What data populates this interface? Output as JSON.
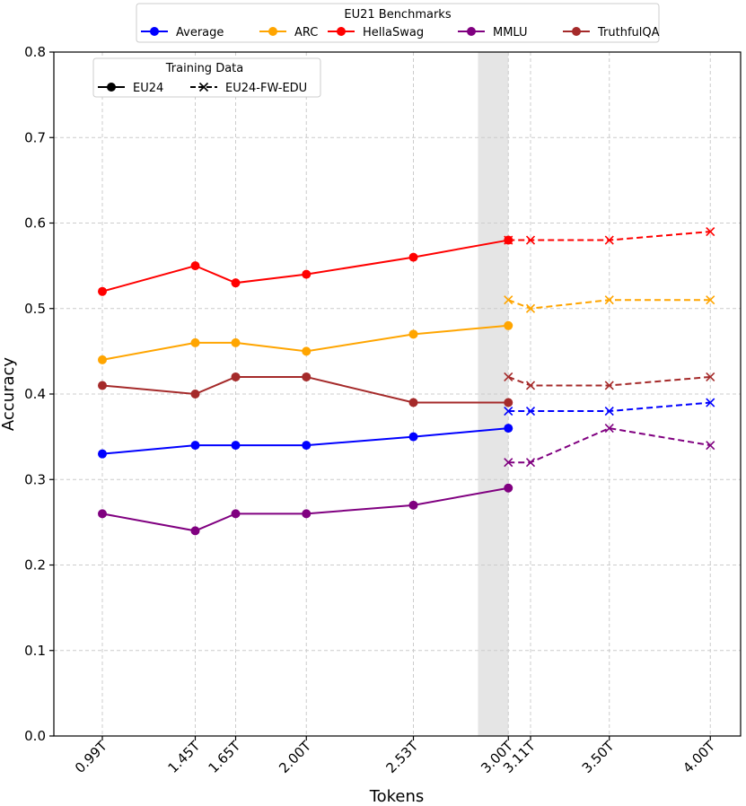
{
  "chart_data": {
    "type": "line",
    "xlabel": "Tokens",
    "ylabel": "Accuracy",
    "ylim": [
      0.0,
      0.8
    ],
    "yticks": [
      "0.0",
      "0.1",
      "0.2",
      "0.3",
      "0.4",
      "0.5",
      "0.6",
      "0.7",
      "0.8"
    ],
    "ytick_values": [
      0.0,
      0.1,
      0.2,
      0.3,
      0.4,
      0.5,
      0.6,
      0.7,
      0.8
    ],
    "xlim": [
      0.75,
      4.15
    ],
    "x_values": [
      0.99,
      1.45,
      1.65,
      2.0,
      2.53,
      3.0,
      3.11,
      3.5,
      4.0
    ],
    "x_tick_labels": [
      "0.99T",
      "1.45T",
      "1.65T",
      "2.00T",
      "2.53T",
      "3.00T",
      "3.11T",
      "3.50T",
      "4.00T"
    ],
    "grid": true,
    "shaded_region": {
      "x": [
        2.85,
        3.0
      ],
      "color": "#e5e5e5"
    },
    "benchmark_legend": {
      "title": "EU21 Benchmarks",
      "placement": "top-center",
      "entries": [
        "Average",
        "ARC",
        "HellaSwag",
        "MMLU",
        "TruthfulQA"
      ]
    },
    "training_legend": {
      "title": "Training Data",
      "placement": "top-left",
      "entries": [
        {
          "label": "EU24",
          "style": "solid",
          "marker": "circle"
        },
        {
          "label": "EU24-FW-EDU",
          "style": "dashed",
          "marker": "x"
        }
      ]
    },
    "series": [
      {
        "name": "Average",
        "color": "#0000ff",
        "eu24": {
          "x": [
            0.99,
            1.45,
            1.65,
            2.0,
            2.53,
            3.0
          ],
          "y": [
            0.33,
            0.34,
            0.34,
            0.34,
            0.35,
            0.36
          ]
        },
        "eu24_fw_edu": {
          "x": [
            3.0,
            3.11,
            3.5,
            4.0
          ],
          "y": [
            0.38,
            0.38,
            0.38,
            0.39
          ]
        }
      },
      {
        "name": "ARC",
        "color": "#ffa500",
        "eu24": {
          "x": [
            0.99,
            1.45,
            1.65,
            2.0,
            2.53,
            3.0
          ],
          "y": [
            0.44,
            0.46,
            0.46,
            0.45,
            0.47,
            0.48
          ]
        },
        "eu24_fw_edu": {
          "x": [
            3.0,
            3.11,
            3.5,
            4.0
          ],
          "y": [
            0.51,
            0.5,
            0.51,
            0.51
          ]
        }
      },
      {
        "name": "HellaSwag",
        "color": "#ff0000",
        "eu24": {
          "x": [
            0.99,
            1.45,
            1.65,
            2.0,
            2.53,
            3.0
          ],
          "y": [
            0.52,
            0.55,
            0.53,
            0.54,
            0.56,
            0.58
          ]
        },
        "eu24_fw_edu": {
          "x": [
            3.0,
            3.11,
            3.5,
            4.0
          ],
          "y": [
            0.58,
            0.58,
            0.58,
            0.59
          ]
        }
      },
      {
        "name": "MMLU",
        "color": "#800080",
        "eu24": {
          "x": [
            0.99,
            1.45,
            1.65,
            2.0,
            2.53,
            3.0
          ],
          "y": [
            0.26,
            0.24,
            0.26,
            0.26,
            0.27,
            0.29
          ]
        },
        "eu24_fw_edu": {
          "x": [
            3.0,
            3.11,
            3.5,
            4.0
          ],
          "y": [
            0.32,
            0.32,
            0.36,
            0.34
          ]
        }
      },
      {
        "name": "TruthfulQA",
        "color": "#a52a2a",
        "eu24": {
          "x": [
            0.99,
            1.45,
            1.65,
            2.0,
            2.53,
            3.0
          ],
          "y": [
            0.41,
            0.4,
            0.42,
            0.42,
            0.39,
            0.39
          ]
        },
        "eu24_fw_edu": {
          "x": [
            3.0,
            3.11,
            3.5,
            4.0
          ],
          "y": [
            0.42,
            0.41,
            0.41,
            0.42
          ]
        }
      }
    ]
  }
}
